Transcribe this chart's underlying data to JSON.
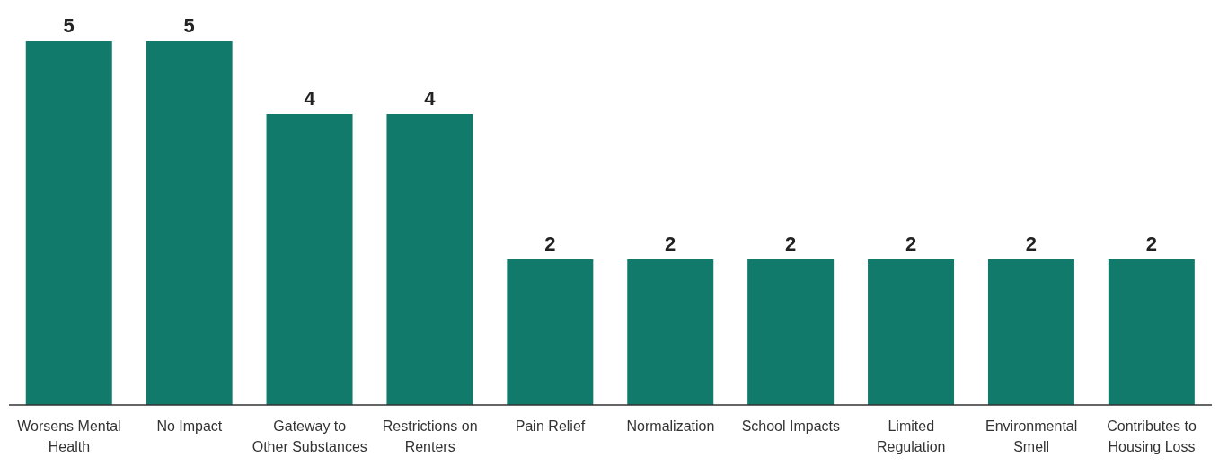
{
  "chart_data": {
    "type": "bar",
    "categories": [
      "Worsens Mental Health",
      "No Impact",
      "Gateway to Other Substances",
      "Restrictions on Renters",
      "Pain Relief",
      "Normalization",
      "School Impacts",
      "Limited Regulation",
      "Environmental Smell",
      "Contributes to Housing Loss"
    ],
    "values": [
      5,
      5,
      4,
      4,
      2,
      2,
      2,
      2,
      2,
      2
    ],
    "color": "#127a6a",
    "data_labels": true
  }
}
